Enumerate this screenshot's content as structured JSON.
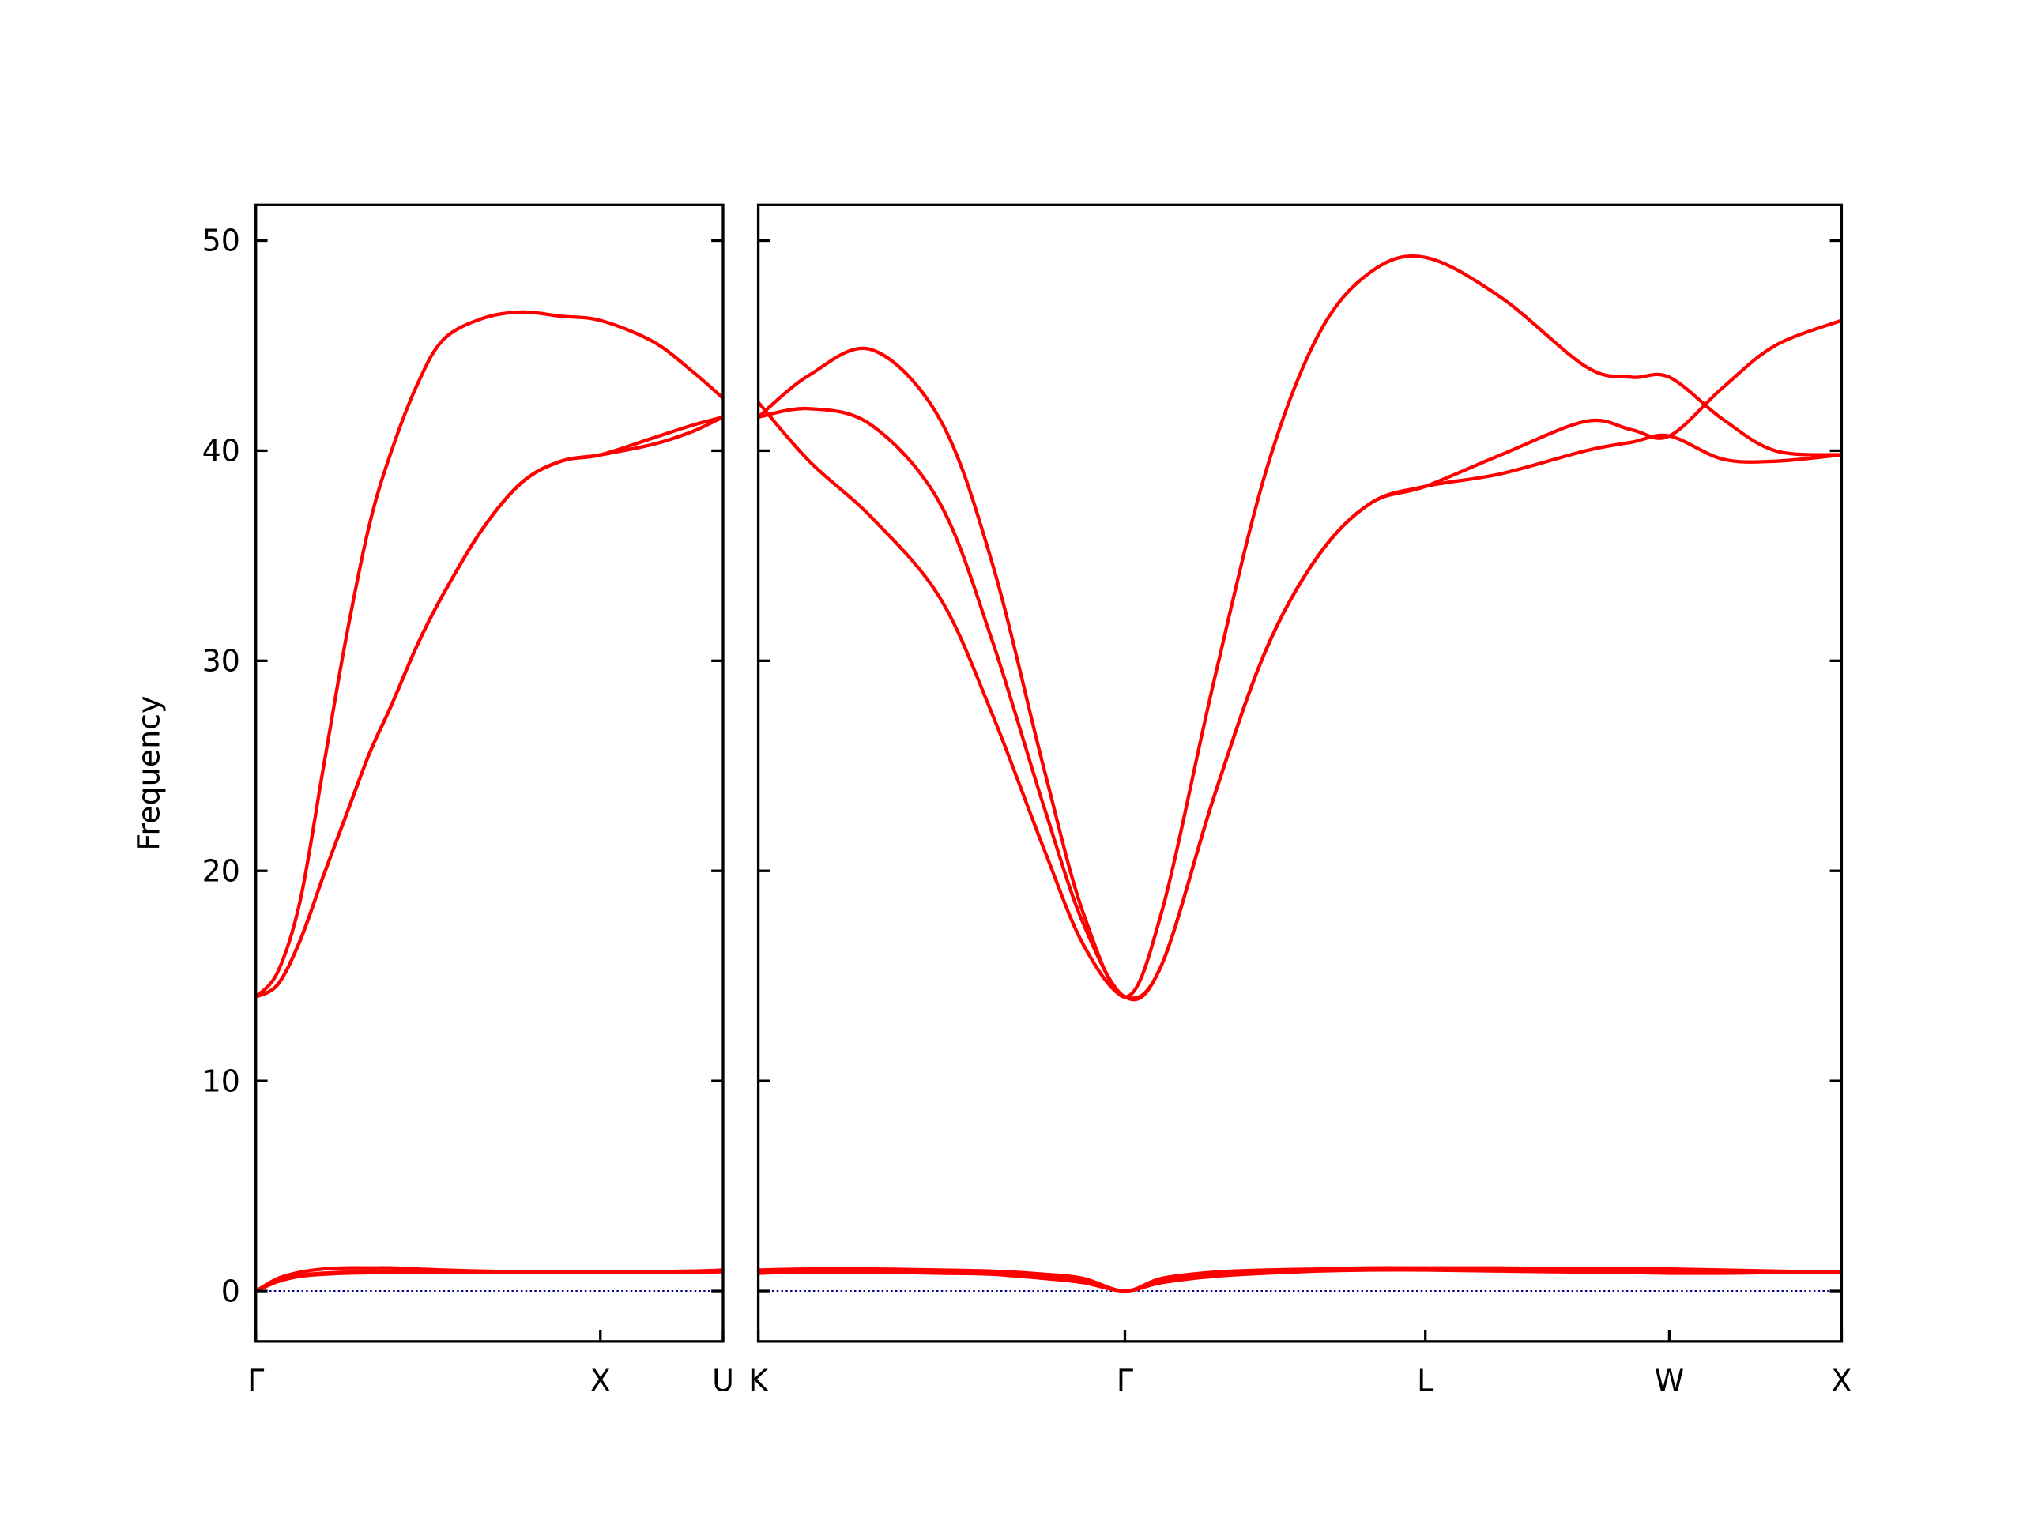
{
  "chart_data": [
    {
      "type": "line",
      "y_label": "Frequency",
      "color": "#ff0000",
      "ytick_labels": true,
      "hline": {
        "value": 0,
        "color": "#00008b"
      },
      "xlim": [
        0,
        1.356
      ],
      "ylim": [
        -2.4,
        51.7
      ],
      "xticks": [
        {
          "value": 0,
          "label": "Γ"
        },
        {
          "value": 1.0,
          "label": "X"
        },
        {
          "value": 1.356,
          "label": "U"
        }
      ],
      "yticks": [
        0,
        10,
        20,
        30,
        40,
        50
      ],
      "x": [
        0,
        0.064,
        0.129,
        0.197,
        0.261,
        0.33,
        0.394,
        0.47,
        0.545,
        0.659,
        0.773,
        0.886,
        1.0,
        1.152,
        1.265,
        1.356
      ],
      "series": [
        {
          "values": [
            14,
            15.2,
            18.6,
            25,
            31,
            36.5,
            40,
            43.2,
            45.3,
            46.3,
            46.6,
            46.4,
            46.2,
            45.2,
            43.8,
            42.5
          ]
        },
        {
          "values": [
            14,
            14.6,
            16.7,
            19.8,
            22.6,
            25.6,
            27.9,
            30.8,
            33.2,
            36.3,
            38.5,
            39.5,
            39.8,
            40.3,
            40.9,
            41.6
          ]
        },
        {
          "values": [
            14,
            14.6,
            16.7,
            19.8,
            22.6,
            25.6,
            27.9,
            30.8,
            33.2,
            36.3,
            38.5,
            39.5,
            39.8,
            40.6,
            41.2,
            41.6
          ]
        },
        {
          "values": [
            0,
            0.6,
            0.9,
            1.05,
            1.1,
            1.1,
            1.1,
            1.05,
            1.0,
            0.95,
            0.92,
            0.9,
            0.9,
            0.92,
            0.95,
            1.0
          ]
        },
        {
          "values": [
            0,
            0.5,
            0.75,
            0.85,
            0.9,
            0.9,
            0.9,
            0.9,
            0.9,
            0.9,
            0.9,
            0.9,
            0.9,
            0.9,
            0.92,
            0.95
          ]
        },
        {
          "values": [
            0,
            0.45,
            0.7,
            0.8,
            0.85,
            0.87,
            0.88,
            0.88,
            0.88,
            0.88,
            0.88,
            0.88,
            0.88,
            0.88,
            0.9,
            0.92
          ]
        }
      ]
    },
    {
      "type": "line",
      "color": "#ff0000",
      "ytick_labels": false,
      "hline": {
        "value": 0,
        "color": "#00008b"
      },
      "xlim": [
        0,
        3.144
      ],
      "ylim": [
        -2.4,
        51.7
      ],
      "xticks": [
        {
          "value": 0,
          "label": "K"
        },
        {
          "value": 1.064,
          "label": "Γ"
        },
        {
          "value": 1.936,
          "label": "L"
        },
        {
          "value": 2.644,
          "label": "W"
        },
        {
          "value": 3.144,
          "label": "X"
        }
      ],
      "yticks": [
        0,
        10,
        20,
        30,
        40,
        50
      ],
      "x": [
        0,
        0.148,
        0.33,
        0.527,
        0.678,
        0.83,
        0.943,
        1.064,
        1.17,
        1.322,
        1.473,
        1.625,
        1.777,
        1.936,
        2.155,
        2.402,
        2.534,
        2.644,
        2.799,
        2.951,
        3.144
      ],
      "series": [
        {
          "values": [
            41.6,
            43.6,
            44.8,
            41.5,
            34.7,
            24.8,
            18,
            14,
            18,
            29,
            39,
            45.5,
            48.5,
            49.2,
            47.3,
            44,
            43.5,
            43.5,
            41.5,
            40,
            39.8
          ]
        },
        {
          "values": [
            41.6,
            42,
            41.2,
            37.5,
            31,
            23,
            17.5,
            14,
            15.5,
            23.5,
            30.5,
            35,
            37.5,
            38.3,
            39.8,
            41.4,
            41,
            40.7,
            43,
            45,
            46.2
          ]
        },
        {
          "values": [
            42.3,
            39.5,
            36.8,
            33,
            27.5,
            21,
            16.5,
            14,
            15.5,
            23.5,
            30.5,
            35,
            37.5,
            38.3,
            38.9,
            40,
            40.4,
            40.7,
            39.6,
            39.5,
            39.8
          ]
        },
        {
          "values": [
            1.0,
            1.05,
            1.05,
            1.0,
            0.95,
            0.8,
            0.6,
            0,
            0.6,
            0.9,
            1.0,
            1.05,
            1.1,
            1.1,
            1.1,
            1.05,
            1.05,
            1.05,
            1.0,
            0.95,
            0.9
          ]
        },
        {
          "values": [
            0.9,
            0.95,
            0.95,
            0.9,
            0.85,
            0.7,
            0.5,
            0,
            0.5,
            0.8,
            0.95,
            1.0,
            1.05,
            1.05,
            1.0,
            0.95,
            0.92,
            0.9,
            0.9,
            0.9,
            0.9
          ]
        },
        {
          "values": [
            0.85,
            0.9,
            0.9,
            0.85,
            0.8,
            0.6,
            0.4,
            0,
            0.4,
            0.7,
            0.85,
            0.95,
            1.0,
            1.0,
            0.95,
            0.9,
            0.88,
            0.85,
            0.85,
            0.88,
            0.9
          ]
        }
      ]
    }
  ]
}
